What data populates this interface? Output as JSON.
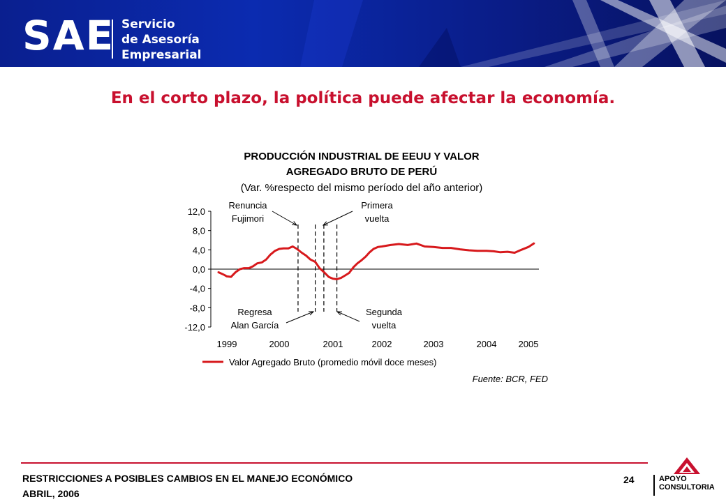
{
  "header": {
    "logo": "SAE",
    "tagline": [
      "Servicio",
      "de Asesoría",
      "Empresarial"
    ]
  },
  "slide_title": "En el corto plazo, la política puede afectar la economía.",
  "chart_data": {
    "type": "line",
    "title": [
      "PRODUCCIÓN INDUSTRIAL DE EEUU Y VALOR",
      "AGREGADO BRUTO DE PERÚ"
    ],
    "subtitle": "(Var. %respecto del mismo período del año anterior)",
    "ylim": [
      -12,
      12
    ],
    "yticks": [
      "12,0",
      "8,0",
      "4,0",
      "0,0",
      "-4,0",
      "-8,0",
      "-12,0"
    ],
    "xticks": [
      "1999",
      "2000",
      "2001",
      "2002",
      "2003",
      "2004",
      "2005"
    ],
    "grid": false,
    "series": [
      {
        "name": "Valor Agregado Bruto (promedio móvil doce meses)",
        "color": "#d7191c",
        "x": [
          1998.83,
          1998.95,
          1999.0,
          1999.08,
          1999.17,
          1999.25,
          1999.33,
          1999.42,
          1999.5,
          1999.58,
          1999.67,
          1999.75,
          1999.83,
          1999.92,
          2000.0,
          2000.08,
          2000.17,
          2000.25,
          2000.33,
          2000.42,
          2000.5,
          2000.58,
          2000.67,
          2000.75,
          2000.83,
          2000.92,
          2001.0,
          2001.08,
          2001.17,
          2001.25,
          2001.33,
          2001.42,
          2001.5,
          2001.58,
          2001.67,
          2001.75,
          2001.83,
          2001.92,
          2002.0,
          2002.17,
          2002.33,
          2002.5,
          2002.67,
          2002.83,
          2003.0,
          2003.17,
          2003.33,
          2003.5,
          2003.67,
          2003.83,
          2004.0,
          2004.17,
          2004.33,
          2004.5,
          2004.67,
          2004.83,
          2005.0,
          2005.12
        ],
        "values": [
          -0.6,
          -1.2,
          -1.5,
          -1.6,
          -0.6,
          0.0,
          0.2,
          0.2,
          0.6,
          1.2,
          1.4,
          2.0,
          3.0,
          3.8,
          4.2,
          4.3,
          4.3,
          4.7,
          4.2,
          3.4,
          2.8,
          2.0,
          1.5,
          0.2,
          -0.6,
          -1.6,
          -2.0,
          -2.1,
          -1.8,
          -1.3,
          -0.8,
          0.4,
          1.2,
          1.8,
          2.6,
          3.5,
          4.2,
          4.6,
          4.7,
          5.0,
          5.2,
          5.0,
          5.3,
          4.7,
          4.6,
          4.4,
          4.4,
          4.1,
          3.9,
          3.8,
          3.8,
          3.7,
          3.5,
          3.6,
          3.4,
          4.0,
          4.6,
          5.4
        ]
      }
    ],
    "annotations": [
      {
        "label": [
          "Renuncia",
          "Fujimori"
        ],
        "x": 2000.35
      },
      {
        "label": [
          "Primera",
          "vuelta"
        ],
        "x": 2000.83
      },
      {
        "label": [
          "Regresa",
          "Alan García"
        ],
        "x": 2000.67
      },
      {
        "label": [
          "Segunda",
          "vuelta"
        ],
        "x": 2001.08
      }
    ],
    "legend_position": "bottom",
    "source": "Fuente: BCR, FED"
  },
  "footer": {
    "subject": "RESTRICCIONES A POSIBLES CAMBIOS EN EL MANEJO ECONÓMICO",
    "date": "ABRIL, 2006",
    "page": "24"
  },
  "brand": {
    "name": [
      "APOYO",
      "CONSULTORIA"
    ],
    "color": "#c8102e"
  }
}
